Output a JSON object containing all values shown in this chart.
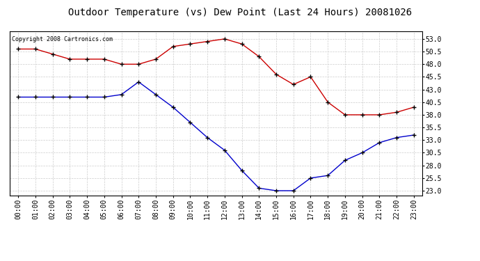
{
  "title": "Outdoor Temperature (vs) Dew Point (Last 24 Hours) 20081026",
  "copyright_text": "Copyright 2008 Cartronics.com",
  "x_labels": [
    "00:00",
    "01:00",
    "02:00",
    "03:00",
    "04:00",
    "05:00",
    "06:00",
    "07:00",
    "08:00",
    "09:00",
    "10:00",
    "11:00",
    "12:00",
    "13:00",
    "14:00",
    "15:00",
    "16:00",
    "17:00",
    "18:00",
    "19:00",
    "20:00",
    "21:00",
    "22:00",
    "23:00"
  ],
  "temp_red": [
    51.0,
    51.0,
    50.0,
    49.0,
    49.0,
    49.0,
    48.0,
    48.0,
    49.0,
    51.5,
    52.0,
    52.5,
    53.0,
    52.0,
    49.5,
    46.0,
    44.0,
    45.5,
    40.5,
    38.0,
    38.0,
    38.0,
    38.5,
    39.5
  ],
  "dew_blue": [
    41.5,
    41.5,
    41.5,
    41.5,
    41.5,
    41.5,
    42.0,
    44.5,
    42.0,
    39.5,
    36.5,
    33.5,
    31.0,
    27.0,
    23.5,
    23.0,
    23.0,
    25.5,
    26.0,
    29.0,
    30.5,
    32.5,
    33.5,
    34.0
  ],
  "ylim": [
    22.0,
    54.5
  ],
  "yticks": [
    23.0,
    25.5,
    28.0,
    30.5,
    33.0,
    35.5,
    38.0,
    40.5,
    43.0,
    45.5,
    48.0,
    50.5,
    53.0
  ],
  "background_color": "#ffffff",
  "plot_bg_color": "#ffffff",
  "grid_color": "#cccccc",
  "red_color": "#cc0000",
  "blue_color": "#0000cc",
  "title_fontsize": 10,
  "tick_fontsize": 7,
  "copyright_fontsize": 6
}
